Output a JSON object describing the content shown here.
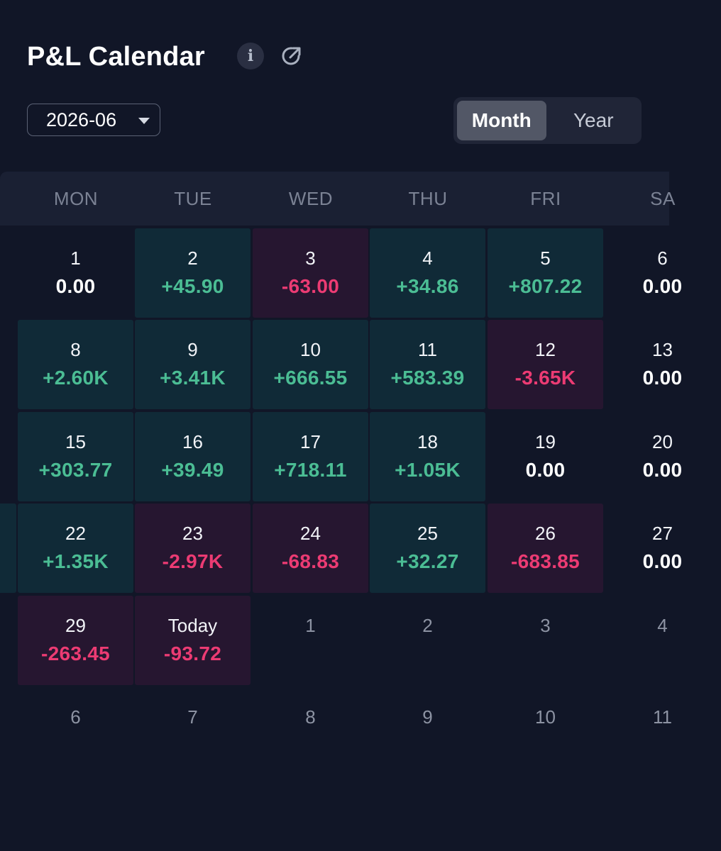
{
  "header": {
    "title": "P&L Calendar",
    "info_icon": "info-icon",
    "info_glyph": "i",
    "external_icon": "external-link-icon"
  },
  "filter": {
    "month_value": "2026-06"
  },
  "view_toggle": {
    "month_label": "Month",
    "year_label": "Year",
    "active": "Month"
  },
  "colors": {
    "positive": "#4bbd94",
    "negative": "#ec3b73",
    "positive_bg": "#102a37",
    "negative_bg": "#261630",
    "background": "#111627"
  },
  "calendar": {
    "weekdays": [
      "MON",
      "TUE",
      "WED",
      "THU",
      "FRI",
      "SA"
    ],
    "weeks": [
      [
        {
          "day": "1",
          "pnl": "0.00",
          "type": "zero"
        },
        {
          "day": "2",
          "pnl": "+45.90",
          "type": "pos"
        },
        {
          "day": "3",
          "pnl": "-63.00",
          "type": "neg"
        },
        {
          "day": "4",
          "pnl": "+34.86",
          "type": "pos"
        },
        {
          "day": "5",
          "pnl": "+807.22",
          "type": "pos"
        },
        {
          "day": "6",
          "pnl": "0.00",
          "type": "zero"
        }
      ],
      [
        {
          "day": "8",
          "pnl": "+2.60K",
          "type": "pos"
        },
        {
          "day": "9",
          "pnl": "+3.41K",
          "type": "pos"
        },
        {
          "day": "10",
          "pnl": "+666.55",
          "type": "pos"
        },
        {
          "day": "11",
          "pnl": "+583.39",
          "type": "pos"
        },
        {
          "day": "12",
          "pnl": "-3.65K",
          "type": "neg"
        },
        {
          "day": "13",
          "pnl": "0.00",
          "type": "zero"
        }
      ],
      [
        {
          "day": "15",
          "pnl": "+303.77",
          "type": "pos"
        },
        {
          "day": "16",
          "pnl": "+39.49",
          "type": "pos"
        },
        {
          "day": "17",
          "pnl": "+718.11",
          "type": "pos"
        },
        {
          "day": "18",
          "pnl": "+1.05K",
          "type": "pos"
        },
        {
          "day": "19",
          "pnl": "0.00",
          "type": "zero"
        },
        {
          "day": "20",
          "pnl": "0.00",
          "type": "zero"
        }
      ],
      [
        {
          "day": "22",
          "pnl": "+1.35K",
          "type": "pos"
        },
        {
          "day": "23",
          "pnl": "-2.97K",
          "type": "neg"
        },
        {
          "day": "24",
          "pnl": "-68.83",
          "type": "neg"
        },
        {
          "day": "25",
          "pnl": "+32.27",
          "type": "pos"
        },
        {
          "day": "26",
          "pnl": "-683.85",
          "type": "neg"
        },
        {
          "day": "27",
          "pnl": "0.00",
          "type": "zero"
        }
      ],
      [
        {
          "day": "29",
          "pnl": "-263.45",
          "type": "neg"
        },
        {
          "day": "Today",
          "pnl": "-93.72",
          "type": "neg"
        },
        {
          "day": "1",
          "pnl": "",
          "type": "out"
        },
        {
          "day": "2",
          "pnl": "",
          "type": "out"
        },
        {
          "day": "3",
          "pnl": "",
          "type": "out"
        },
        {
          "day": "4",
          "pnl": "",
          "type": "out"
        }
      ],
      [
        {
          "day": "6",
          "pnl": "",
          "type": "out"
        },
        {
          "day": "7",
          "pnl": "",
          "type": "out"
        },
        {
          "day": "8",
          "pnl": "",
          "type": "out"
        },
        {
          "day": "9",
          "pnl": "",
          "type": "out"
        },
        {
          "day": "10",
          "pnl": "",
          "type": "out"
        },
        {
          "day": "11",
          "pnl": "",
          "type": "out"
        }
      ]
    ]
  }
}
